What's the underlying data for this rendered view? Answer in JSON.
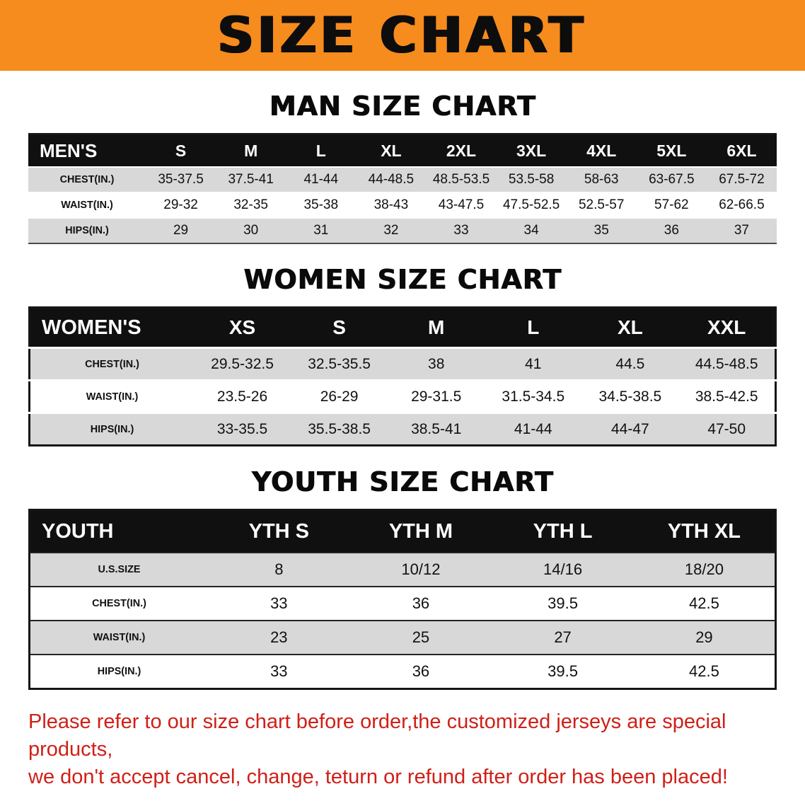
{
  "banner": {
    "title": "SIZE CHART"
  },
  "colors": {
    "banner_orange": "#f68b1e",
    "header_black": "#101010",
    "stripe_gray": "#d8d8d8",
    "footer_red": "#cf2018"
  },
  "tables": [
    {
      "title": "MAN SIZE CHART",
      "header": [
        "MEN'S",
        "S",
        "M",
        "L",
        "XL",
        "2XL",
        "3XL",
        "4XL",
        "5XL",
        "6XL"
      ],
      "rows": [
        [
          "CHEST(IN.)",
          "35-37.5",
          "37.5-41",
          "41-44",
          "44-48.5",
          "48.5-53.5",
          "53.5-58",
          "58-63",
          "63-67.5",
          "67.5-72"
        ],
        [
          "WAIST(IN.)",
          "29-32",
          "32-35",
          "35-38",
          "38-43",
          "43-47.5",
          "47.5-52.5",
          "52.5-57",
          "57-62",
          "62-66.5"
        ],
        [
          "HIPS(IN.)",
          "29",
          "30",
          "31",
          "32",
          "33",
          "34",
          "35",
          "36",
          "37"
        ]
      ]
    },
    {
      "title": "WOMEN SIZE CHART",
      "header": [
        "WOMEN'S",
        "XS",
        "S",
        "M",
        "L",
        "XL",
        "XXL"
      ],
      "rows": [
        [
          "CHEST(IN.)",
          "29.5-32.5",
          "32.5-35.5",
          "38",
          "41",
          "44.5",
          "44.5-48.5"
        ],
        [
          "WAIST(IN.)",
          "23.5-26",
          "26-29",
          "29-31.5",
          "31.5-34.5",
          "34.5-38.5",
          "38.5-42.5"
        ],
        [
          "HIPS(IN.)",
          "33-35.5",
          "35.5-38.5",
          "38.5-41",
          "41-44",
          "44-47",
          "47-50"
        ]
      ]
    },
    {
      "title": "YOUTH SIZE CHART",
      "header": [
        "YOUTH",
        "YTH S",
        "YTH M",
        "YTH L",
        "YTH XL"
      ],
      "rows": [
        [
          "U.S.SIZE",
          "8",
          "10/12",
          "14/16",
          "18/20"
        ],
        [
          "CHEST(IN.)",
          "33",
          "36",
          "39.5",
          "42.5"
        ],
        [
          "WAIST(IN.)",
          "23",
          "25",
          "27",
          "29"
        ],
        [
          "HIPS(IN.)",
          "33",
          "36",
          "39.5",
          "42.5"
        ]
      ]
    }
  ],
  "footer": {
    "line1": "Please refer to our size chart before order,the customized jerseys are special products,",
    "line2": "we don't accept cancel, change, teturn or refund after order has been placed!"
  }
}
